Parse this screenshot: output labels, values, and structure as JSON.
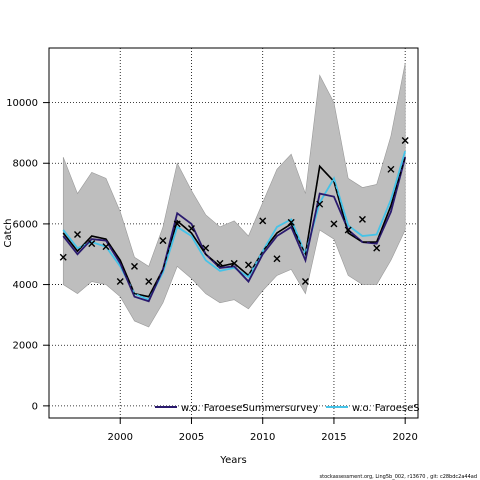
{
  "chart_data": {
    "type": "line",
    "xlabel": "Years",
    "ylabel": "Catch",
    "xlim": [
      1995,
      2020.9
    ],
    "ylim": [
      -400,
      11800
    ],
    "xticks": [
      2000,
      2005,
      2010,
      2015,
      2020
    ],
    "yticks": [
      0,
      2000,
      4000,
      6000,
      8000,
      10000
    ],
    "grid": true,
    "legend_position": "bottom",
    "years": [
      1996,
      1997,
      1998,
      1999,
      2000,
      2001,
      2002,
      2003,
      2004,
      2005,
      2006,
      2007,
      2008,
      2009,
      2010,
      2011,
      2012,
      2013,
      2014,
      2015,
      2016,
      2017,
      2018,
      2019,
      2020
    ],
    "base_fit": [
      5700,
      5100,
      5600,
      5500,
      4800,
      3700,
      3600,
      4500,
      6100,
      5700,
      5000,
      4600,
      4700,
      4300,
      5100,
      5700,
      6000,
      5000,
      7900,
      7400,
      5700,
      5400,
      5400,
      6600,
      8200
    ],
    "ci_upper": [
      8200,
      7000,
      7700,
      7500,
      6400,
      4900,
      4600,
      5900,
      8000,
      7100,
      6300,
      5900,
      6100,
      5600,
      6700,
      7800,
      8300,
      7000,
      10900,
      10000,
      7500,
      7200,
      7300,
      8900,
      11300
    ],
    "ci_lower": [
      4000,
      3700,
      4100,
      4000,
      3600,
      2800,
      2600,
      3400,
      4600,
      4200,
      3700,
      3400,
      3500,
      3200,
      3800,
      4300,
      4500,
      3700,
      5800,
      5500,
      4300,
      4000,
      4000,
      4800,
      5800
    ],
    "observed": [
      4900,
      5650,
      5350,
      5250,
      4100,
      4600,
      4100,
      5450,
      6000,
      5850,
      5200,
      4700,
      4700,
      4650,
      6100,
      4850,
      6050,
      4100,
      6650,
      6000,
      5800,
      6150,
      5200,
      7800,
      8750
    ],
    "series": [
      {
        "name": "w.o. FaroeseSummersurvey",
        "color": "#2a1a6e",
        "values": [
          5600,
          5000,
          5500,
          5450,
          4700,
          3600,
          3450,
          4500,
          6350,
          6000,
          5000,
          4550,
          4600,
          4100,
          5000,
          5600,
          5900,
          4800,
          7000,
          6900,
          5800,
          5400,
          5350,
          6400,
          8200
        ]
      },
      {
        "name": "w.o. FaroeseS",
        "color": "#45c3e8",
        "values": [
          5800,
          5200,
          5400,
          5250,
          4600,
          3700,
          3500,
          4400,
          5900,
          5600,
          4800,
          4450,
          4550,
          4250,
          5100,
          5900,
          6150,
          5000,
          6700,
          7500,
          5950,
          5600,
          5650,
          6800,
          8400
        ]
      }
    ]
  },
  "footer": "stockassessment.org, Ling5b_002, r13670 , git: c28bdc2a44ad"
}
